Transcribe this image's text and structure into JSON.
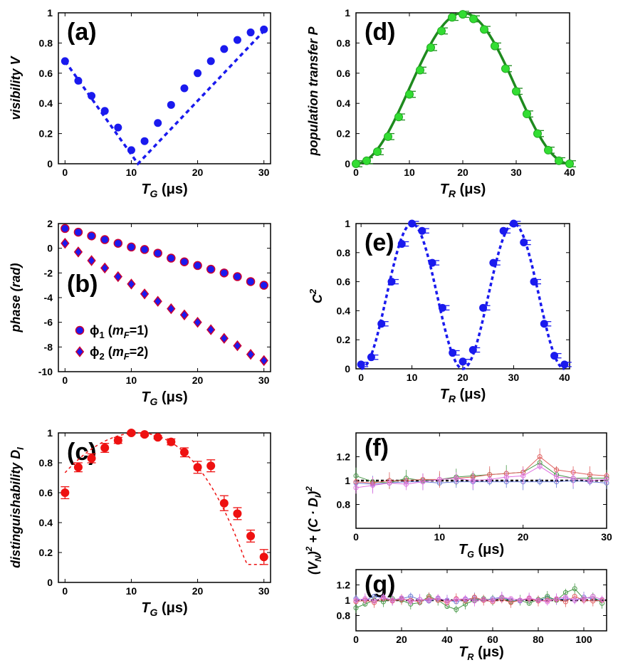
{
  "colors": {
    "blue": "#1a1aee",
    "green": "#1e8a1e",
    "lightgreen": "#33dd33",
    "red": "#ee1111",
    "outline": "#cc0033",
    "f_blue": "#6b7bd6",
    "f_green": "#4a9a4a",
    "f_red": "#e06060",
    "f_pink": "#e070e0"
  },
  "chart_data": [
    {
      "id": "a",
      "type": "scatter",
      "panel_label": "(a)",
      "ylabel": "visibility V",
      "xlabel_main": "T",
      "xlabel_sub": "G",
      "xlabel_unit": "(μs)",
      "xlim": [
        -1,
        31
      ],
      "ylim": [
        0,
        1
      ],
      "xticks": [
        0,
        10,
        20,
        30
      ],
      "yticks": [
        0,
        0.2,
        0.4,
        0.6,
        0.8,
        1
      ],
      "ytick_labels": [
        "0",
        "0.2",
        "0.4",
        "0.6",
        "0.8",
        "1"
      ],
      "x": [
        0,
        2,
        4,
        6,
        8,
        10,
        12,
        14,
        16,
        18,
        20,
        22,
        24,
        26,
        28,
        30
      ],
      "y": [
        0.68,
        0.55,
        0.45,
        0.35,
        0.24,
        0.09,
        0.15,
        0.27,
        0.39,
        0.5,
        0.6,
        0.68,
        0.76,
        0.82,
        0.87,
        0.89
      ],
      "fit_x": [
        0,
        11,
        30
      ],
      "fit_y": [
        0.68,
        0.0,
        0.88
      ]
    },
    {
      "id": "b",
      "type": "scatter",
      "panel_label": "(b)",
      "ylabel": "phase (rad)",
      "xlabel_main": "T",
      "xlabel_sub": "G",
      "xlabel_unit": "(μs)",
      "xlim": [
        -1,
        31
      ],
      "ylim": [
        -10,
        2
      ],
      "xticks": [
        0,
        10,
        20,
        30
      ],
      "yticks": [
        -10,
        -8,
        -6,
        -4,
        -2,
        0,
        2
      ],
      "ytick_labels": [
        "-10",
        "-8",
        "-6",
        "-4",
        "-2",
        "0",
        "2"
      ],
      "x": [
        0,
        2,
        4,
        6,
        8,
        10,
        12,
        14,
        16,
        18,
        20,
        22,
        24,
        26,
        28,
        30
      ],
      "series": [
        {
          "name": "ϕ1 (mF=1)",
          "symbol": "ϕ",
          "sub": "1",
          "mf": "m",
          "mf_sub": "F",
          "mf_val": "=1)",
          "marker": "circle",
          "values": [
            1.6,
            1.3,
            1.0,
            0.7,
            0.4,
            0.1,
            -0.1,
            -0.4,
            -0.8,
            -1.1,
            -1.4,
            -1.7,
            -2.0,
            -2.3,
            -2.7,
            -3.0
          ]
        },
        {
          "name": "ϕ2 (mF=2)",
          "symbol": "ϕ",
          "sub": "2",
          "mf": "m",
          "mf_sub": "F",
          "mf_val": "=2)",
          "marker": "diamond",
          "values": [
            0.4,
            -0.3,
            -1.0,
            -1.6,
            -2.3,
            -2.9,
            -3.7,
            -4.3,
            -4.9,
            -5.4,
            -6.0,
            -6.6,
            -7.3,
            -7.9,
            -8.6,
            -9.1
          ]
        }
      ]
    },
    {
      "id": "c",
      "type": "scatter",
      "panel_label": "(c)",
      "ylabel_main": "distinguishability D",
      "ylabel_sub": "I",
      "xlabel_main": "T",
      "xlabel_sub": "G",
      "xlabel_unit": "(μs)",
      "xlim": [
        -1,
        31
      ],
      "ylim": [
        0,
        1
      ],
      "xticks": [
        0,
        10,
        20,
        30
      ],
      "yticks": [
        0,
        0.2,
        0.4,
        0.6,
        0.8,
        1
      ],
      "ytick_labels": [
        "0",
        "0.2",
        "0.4",
        "0.6",
        "0.8",
        "1"
      ],
      "x": [
        0,
        2,
        4,
        6,
        8,
        10,
        12,
        14,
        16,
        18,
        20,
        22,
        24,
        26,
        28,
        30
      ],
      "y": [
        0.6,
        0.77,
        0.83,
        0.9,
        0.95,
        1.0,
        0.99,
        0.97,
        0.94,
        0.87,
        0.77,
        0.78,
        0.53,
        0.46,
        0.31,
        0.17
      ],
      "err": [
        0.04,
        0.03,
        0.03,
        0.03,
        0.02,
        0.01,
        0.01,
        0.01,
        0.02,
        0.03,
        0.04,
        0.04,
        0.05,
        0.04,
        0.04,
        0.05
      ]
    },
    {
      "id": "d",
      "type": "scatter",
      "panel_label": "(d)",
      "ylabel": "population transfer P",
      "xlabel_main": "T",
      "xlabel_sub": "R",
      "xlabel_unit": "(μs)",
      "xlim": [
        0,
        40
      ],
      "ylim": [
        0,
        1
      ],
      "xticks": [
        0,
        10,
        20,
        30,
        40
      ],
      "yticks": [
        0,
        0.2,
        0.4,
        0.6,
        0.8,
        1
      ],
      "ytick_labels": [
        "0",
        "0.2",
        "0.4",
        "0.6",
        "0.8",
        "1"
      ],
      "x": [
        0,
        2,
        4,
        6,
        8,
        10,
        12,
        14,
        16,
        18,
        20,
        22,
        24,
        26,
        28,
        30,
        32,
        34,
        36,
        38,
        40
      ],
      "y": [
        0.0,
        0.02,
        0.08,
        0.18,
        0.31,
        0.46,
        0.62,
        0.77,
        0.88,
        0.97,
        0.99,
        0.96,
        0.89,
        0.78,
        0.63,
        0.48,
        0.33,
        0.2,
        0.09,
        0.02,
        0.0
      ]
    },
    {
      "id": "e",
      "type": "scatter",
      "panel_label": "(e)",
      "ylabel_main": "C",
      "ylabel_sup": "2",
      "xlabel_main": "T",
      "xlabel_sub": "R",
      "xlabel_unit": "(μs)",
      "xlim": [
        -1,
        41
      ],
      "ylim": [
        0,
        1
      ],
      "xticks": [
        0,
        10,
        20,
        30,
        40
      ],
      "yticks": [
        0,
        0.2,
        0.4,
        0.6,
        0.8,
        1
      ],
      "ytick_labels": [
        "0",
        "0.2",
        "0.4",
        "0.6",
        "0.8",
        "1"
      ],
      "x": [
        0,
        2,
        4,
        6,
        8,
        10,
        12,
        14,
        16,
        18,
        20,
        22,
        24,
        26,
        28,
        30,
        32,
        34,
        36,
        38,
        40
      ],
      "y": [
        0.03,
        0.08,
        0.31,
        0.6,
        0.86,
        1.0,
        0.95,
        0.73,
        0.42,
        0.11,
        0.05,
        0.13,
        0.42,
        0.73,
        0.95,
        1.0,
        0.87,
        0.6,
        0.31,
        0.09,
        0.03
      ]
    },
    {
      "id": "f",
      "type": "line",
      "panel_label": "(f)",
      "xlabel_main": "T",
      "xlabel_sub": "G",
      "xlabel_unit": "(μs)",
      "xlim": [
        0,
        30
      ],
      "ylim": [
        0.6,
        1.4
      ],
      "xticks": [
        0,
        10,
        20,
        30
      ],
      "yticks": [
        0.8,
        1,
        1.2
      ],
      "ytick_labels": [
        "0.8",
        "1",
        "1.2"
      ],
      "reference_line": 1.0,
      "x": [
        0,
        2,
        4,
        6,
        8,
        10,
        12,
        14,
        16,
        18,
        20,
        22,
        24,
        26,
        28,
        30
      ],
      "series": [
        {
          "name": "blue",
          "values": [
            0.98,
            0.97,
            0.98,
            0.99,
            0.99,
            0.98,
            0.99,
            0.99,
            0.99,
            0.99,
            0.99,
            0.99,
            0.99,
            1.0,
            0.99,
            0.98
          ]
        },
        {
          "name": "green",
          "values": [
            1.04,
            0.99,
            0.98,
            1.02,
            1.0,
            1.01,
            1.03,
            1.04,
            1.05,
            1.06,
            1.07,
            1.15,
            1.05,
            1.02,
            1.02,
            1.02
          ]
        },
        {
          "name": "red",
          "values": [
            0.99,
            0.98,
            1.0,
            1.0,
            1.01,
            1.01,
            1.02,
            1.03,
            1.05,
            1.06,
            1.07,
            1.2,
            1.09,
            1.07,
            1.05,
            1.04
          ]
        },
        {
          "name": "pink",
          "values": [
            0.94,
            0.96,
            0.98,
            0.97,
            0.99,
            1.01,
            1.02,
            1.0,
            1.01,
            1.03,
            1.04,
            1.12,
            1.03,
            1.02,
            1.0,
            1.01
          ]
        }
      ]
    },
    {
      "id": "g",
      "type": "line",
      "panel_label": "(g)",
      "ylabel_combined": "(V_N)^2 + (C·D_I)^2",
      "xlabel_main": "T",
      "xlabel_sub": "R",
      "xlabel_unit": "(μs)",
      "xlim": [
        0,
        110
      ],
      "ylim": [
        0.6,
        1.4
      ],
      "xticks": [
        0,
        20,
        40,
        60,
        80,
        100
      ],
      "yticks": [
        0.8,
        1,
        1.2
      ],
      "ytick_labels": [
        "0.8",
        "1",
        "1.2"
      ],
      "reference_line": 1.0,
      "x": [
        0,
        4,
        8,
        12,
        16,
        20,
        24,
        28,
        32,
        36,
        40,
        44,
        48,
        52,
        56,
        60,
        64,
        68,
        72,
        76,
        80,
        84,
        88,
        92,
        96,
        100,
        104,
        108
      ],
      "series": [
        {
          "name": "blue",
          "values": [
            1.02,
            1.0,
            1.05,
            1.03,
            1.0,
            1.02,
            1.05,
            1.01,
            0.99,
            1.02,
            1.0,
            0.98,
            1.01,
            1.03,
            1.0,
            1.02,
            1.04,
            1.0,
            0.99,
            1.02,
            1.0,
            1.03,
            1.01,
            1.02,
            1.0,
            1.04,
            1.02,
            1.0
          ]
        },
        {
          "name": "green",
          "values": [
            0.9,
            0.95,
            1.0,
            0.98,
            1.02,
            1.0,
            0.95,
            0.97,
            1.05,
            1.0,
            0.92,
            0.88,
            0.95,
            1.0,
            1.02,
            1.0,
            1.03,
            0.98,
            1.0,
            0.96,
            1.01,
            1.05,
            1.0,
            1.1,
            1.15,
            1.02,
            1.05,
            0.96
          ]
        },
        {
          "name": "red",
          "values": [
            0.98,
            1.0,
            0.97,
            1.02,
            0.99,
            1.01,
            1.0,
            0.98,
            1.03,
            1.0,
            0.97,
            1.02,
            0.99,
            1.04,
            1.0,
            0.98,
            1.01,
            0.97,
            1.0,
            1.02,
            0.99,
            1.0,
            1.01,
            0.98,
            1.05,
            1.0,
            0.99,
            1.0
          ]
        },
        {
          "name": "pink",
          "values": [
            1.0,
            1.02,
            0.99,
            1.04,
            1.0,
            1.03,
            0.98,
            1.01,
            1.0,
            1.03,
            0.99,
            1.01,
            1.02,
            0.99,
            1.01,
            1.0,
            1.04,
            1.02,
            1.0,
            1.03,
            1.0,
            0.98,
            1.02,
            1.04,
            1.0,
            1.02,
            1.05,
            1.01
          ]
        }
      ]
    }
  ]
}
